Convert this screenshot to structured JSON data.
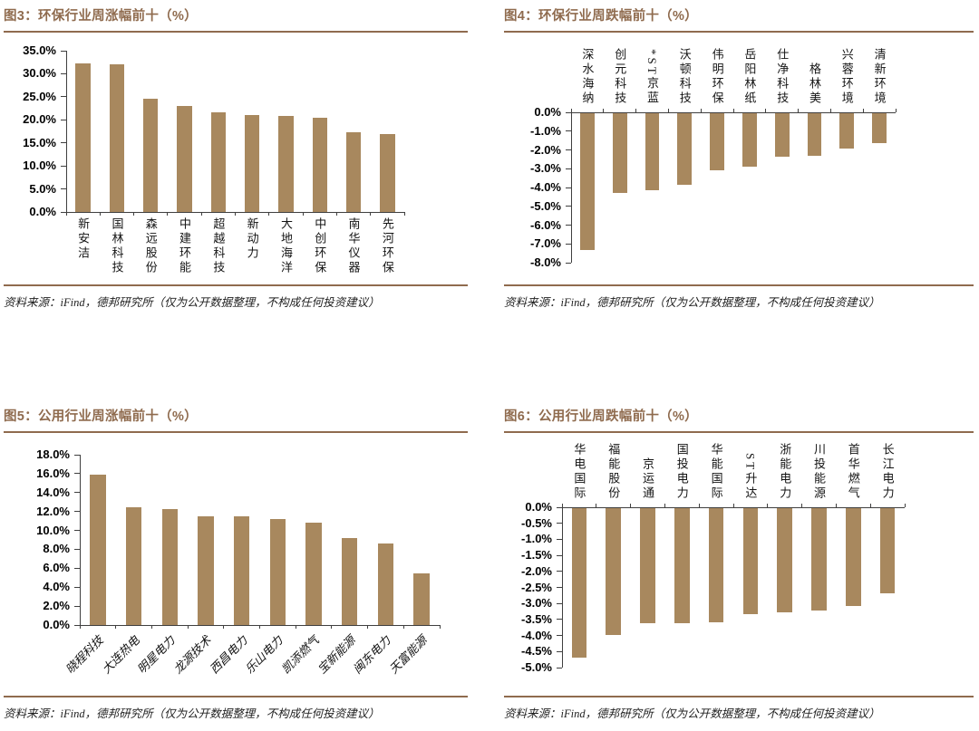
{
  "colors": {
    "accent_brown": "#8f6b4e",
    "bar_fill": "#a8885e",
    "axis": "#3f3f3f",
    "tick_label": "#000000",
    "category_label": "#141414",
    "source_text": "#1f1f1f",
    "background": "#ffffff"
  },
  "figures": [
    {
      "title": "图3：环保行业周涨幅前十（%）",
      "source": "资料来源：iFind，德邦研究所（仅为公开数据整理，不构成任何投资建议）"
    },
    {
      "title": "图4：环保行业周跌幅前十（%）",
      "source": "资料来源：iFind，德邦研究所（仅为公开数据整理，不构成任何投资建议）"
    },
    {
      "title": "图5：公用行业周涨幅前十（%）",
      "source": "资料来源：iFind，德邦研究所（仅为公开数据整理，不构成任何投资建议）"
    },
    {
      "title": "图6：公用行业周跌幅前十（%）",
      "source": "资料来源：iFind，德邦研究所（仅为公开数据整理，不构成任何投资建议）"
    }
  ],
  "chart_data": [
    {
      "type": "bar",
      "title": "图3：环保行业周涨幅前十（%）",
      "categories": [
        "新安洁",
        "国林科技",
        "森远股份",
        "中建环能",
        "超越科技",
        "新动力",
        "大地海洋",
        "中创环保",
        "南华仪器",
        "先河环保"
      ],
      "values": [
        32.3,
        32.0,
        24.5,
        23.0,
        21.7,
        21.1,
        20.8,
        20.4,
        17.3,
        17.0
      ],
      "unit": "%",
      "ylim": [
        0,
        35
      ],
      "yticks": [
        "35.0%",
        "30.0%",
        "25.0%",
        "20.0%",
        "15.0%",
        "10.0%",
        "5.0%",
        "0.0%"
      ],
      "xlabel": "",
      "ylabel": "",
      "grid": false,
      "legend": "none"
    },
    {
      "type": "bar",
      "title": "图4：环保行业周跌幅前十（%）",
      "categories": [
        "深水海纳",
        "创元科技",
        "*ST京蓝",
        "沃顿科技",
        "伟明环保",
        "岳阳林纸",
        "仕净科技",
        "格林美",
        "兴蓉环境",
        "清新环境"
      ],
      "values": [
        -7.3,
        -4.25,
        -4.1,
        -3.8,
        -3.05,
        -2.85,
        -2.3,
        -2.25,
        -1.9,
        -1.6
      ],
      "unit": "%",
      "ylim": [
        -8,
        0
      ],
      "yticks": [
        "0.0%",
        "-1.0%",
        "-2.0%",
        "-3.0%",
        "-4.0%",
        "-5.0%",
        "-6.0%",
        "-7.0%",
        "-8.0%"
      ],
      "xlabel": "",
      "ylabel": "",
      "grid": false,
      "legend": "none"
    },
    {
      "type": "bar",
      "title": "图5：公用行业周涨幅前十（%）",
      "categories": [
        "晓程科技",
        "大连热电",
        "明星电力",
        "龙源技术",
        "西昌电力",
        "乐山电力",
        "凯添燃气",
        "宝新能源",
        "闽东电力",
        "天富能源"
      ],
      "values": [
        15.9,
        12.4,
        12.3,
        11.5,
        11.5,
        11.2,
        10.8,
        9.2,
        8.6,
        5.5
      ],
      "unit": "%",
      "ylim": [
        0,
        18
      ],
      "yticks": [
        "18.0%",
        "16.0%",
        "14.0%",
        "12.0%",
        "10.0%",
        "8.0%",
        "6.0%",
        "4.0%",
        "2.0%",
        "0.0%"
      ],
      "xlabel": "",
      "ylabel": "",
      "grid": false,
      "legend": "none"
    },
    {
      "type": "bar",
      "title": "图6：公用行业周跌幅前十（%）",
      "categories": [
        "华电国际",
        "福能股份",
        "京运通",
        "国投电力",
        "华能国际",
        "ST升达",
        "浙能电力",
        "川投能源",
        "首华燃气",
        "长江电力"
      ],
      "values": [
        -4.65,
        -3.95,
        -3.6,
        -3.6,
        -3.55,
        -3.3,
        -3.25,
        -3.2,
        -3.05,
        -2.65
      ],
      "unit": "%",
      "ylim": [
        -5,
        0
      ],
      "yticks": [
        "0.0%",
        "-0.5%",
        "-1.0%",
        "-1.5%",
        "-2.0%",
        "-2.5%",
        "-3.0%",
        "-3.5%",
        "-4.0%",
        "-4.5%",
        "-5.0%"
      ],
      "xlabel": "",
      "ylabel": "",
      "grid": false,
      "legend": "none"
    }
  ]
}
